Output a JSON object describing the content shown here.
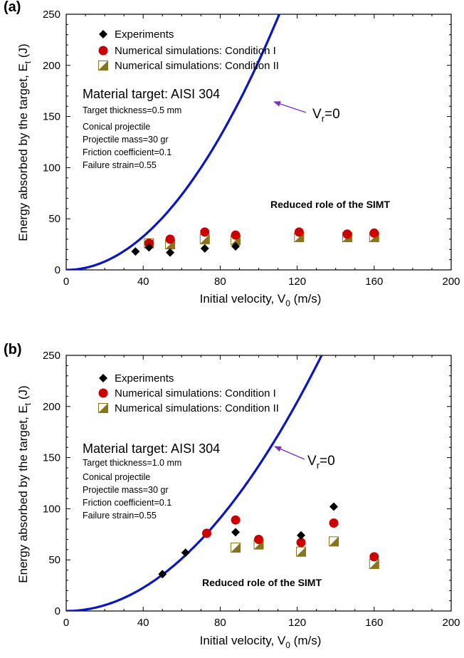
{
  "colors": {
    "curve": "#0a14c8",
    "experiment": "#000000",
    "condition_one": "#cc0000",
    "condition_two_dark": "#8a7418",
    "condition_two_light": "#ffffff",
    "arrow": "#7a30c8"
  },
  "chart_data": [
    {
      "type": "scatter",
      "panel_label": "(a)",
      "xlabel_main": "Initial velocity, V",
      "xlabel_sub": "0",
      "xlabel_unit": " (m/s)",
      "ylabel_main": "Energy absorbed by the target, E",
      "ylabel_sub": "t",
      "ylabel_unit": " (J)",
      "xlim": [
        0,
        200
      ],
      "ylim": [
        0,
        250
      ],
      "x_ticks": [
        "0",
        "40",
        "80",
        "120",
        "160",
        "200"
      ],
      "y_ticks": [
        "0",
        "50",
        "100",
        "150",
        "200",
        "250"
      ],
      "legend": [
        "Experiments",
        "Numerical simulations: Condition I",
        "Numerical simulations: Condition II"
      ],
      "material": "Material target: AISI 304",
      "notes": [
        "Target thickness=0.5 mm",
        "Conical projectile",
        "Projectile mass=30 gr",
        "Friction coefficient=0.1",
        "Failure strain=0.55"
      ],
      "bold_note": "Reduced role of the SIMT",
      "curve_label_main": "V",
      "curve_label_sub": "r",
      "curve_label_rest": "=0",
      "curve_coefficient": 0.0204,
      "experiments": [
        [
          36,
          18
        ],
        [
          43,
          22
        ],
        [
          54,
          17
        ],
        [
          72,
          21
        ],
        [
          88,
          23
        ]
      ],
      "condition_one": [
        [
          43,
          26
        ],
        [
          54,
          30
        ],
        [
          72,
          37
        ],
        [
          88,
          34
        ],
        [
          121,
          37
        ],
        [
          146,
          35
        ],
        [
          160,
          36
        ]
      ],
      "condition_two": [
        [
          43,
          26
        ],
        [
          54,
          25
        ],
        [
          72,
          30
        ],
        [
          88,
          29
        ],
        [
          121,
          32
        ],
        [
          146,
          32
        ],
        [
          160,
          32
        ]
      ]
    },
    {
      "type": "scatter",
      "panel_label": "(b)",
      "xlabel_main": "Initial velocity, V",
      "xlabel_sub": "0",
      "xlabel_unit": " (m/s)",
      "ylabel_main": "Energy absorbed by the target, E",
      "ylabel_sub": "t",
      "ylabel_unit": " (J)",
      "xlim": [
        0,
        200
      ],
      "ylim": [
        0,
        250
      ],
      "x_ticks": [
        "0",
        "40",
        "80",
        "120",
        "160",
        "200"
      ],
      "y_ticks": [
        "0",
        "50",
        "100",
        "150",
        "200",
        "250"
      ],
      "legend": [
        "Experiments",
        "Numerical simulations: Condition I",
        "Numerical simulations: Condition II"
      ],
      "material": "Material target: AISI 304",
      "notes": [
        "Target thickness=1.0 mm",
        "Conical projectile",
        "Projectile mass=30 gr",
        "Friction coefficient=0.1",
        "Failure strain=0.55"
      ],
      "bold_note": "Reduced role of the SIMT",
      "curve_label_main": "V",
      "curve_label_sub": "r",
      "curve_label_rest": "=0",
      "curve_coefficient": 0.0142,
      "experiments": [
        [
          50,
          36
        ],
        [
          62,
          57
        ],
        [
          88,
          77
        ],
        [
          122,
          74
        ],
        [
          139,
          102
        ]
      ],
      "condition_one": [
        [
          73,
          76
        ],
        [
          88,
          89
        ],
        [
          100,
          70
        ],
        [
          122,
          67
        ],
        [
          139,
          86
        ],
        [
          160,
          53
        ]
      ],
      "condition_two": [
        [
          88,
          62
        ],
        [
          100,
          65
        ],
        [
          122,
          58
        ],
        [
          139,
          68
        ],
        [
          160,
          46
        ]
      ]
    }
  ]
}
